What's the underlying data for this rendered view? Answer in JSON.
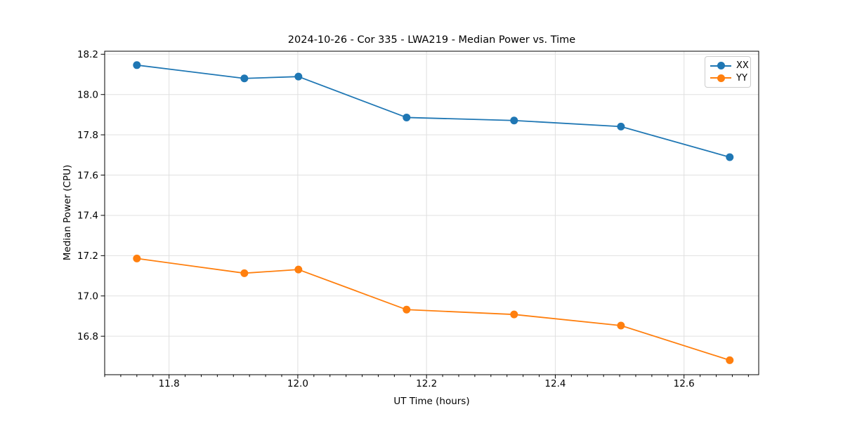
{
  "figure": {
    "title": "2024-10-26 - Cor 335 - LWA219 - Median Power vs. Time",
    "xlabel": "UT Time (hours)",
    "ylabel": "Median Power (CPU)"
  },
  "legend": {
    "items": [
      {
        "label": "XX",
        "color": "#1f77b4"
      },
      {
        "label": "YY",
        "color": "#ff7f0e"
      }
    ]
  },
  "colors": {
    "series_xx": "#1f77b4",
    "series_yy": "#ff7f0e",
    "grid": "#e0e0e0",
    "spine": "#000000",
    "background": "#ffffff"
  },
  "chart_data": {
    "type": "line",
    "title": "2024-10-26 - Cor 335 - LWA219 - Median Power vs. Time",
    "xlabel": "UT Time (hours)",
    "ylabel": "Median Power (CPU)",
    "x": [
      11.75,
      11.917,
      12.001,
      12.169,
      12.336,
      12.502,
      12.671
    ],
    "series": [
      {
        "name": "XX",
        "color": "#1f77b4",
        "values": [
          18.146,
          18.08,
          18.089,
          17.886,
          17.871,
          17.841,
          17.689
        ]
      },
      {
        "name": "YY",
        "color": "#ff7f0e",
        "values": [
          17.186,
          17.113,
          17.131,
          16.932,
          16.908,
          16.853,
          16.681
        ]
      }
    ],
    "xlim": [
      11.7,
      12.716
    ],
    "ylim": [
      16.609,
      18.215
    ],
    "x_ticks": [
      11.8,
      12.0,
      12.2,
      12.4,
      12.6
    ],
    "x_tick_labels": [
      "11.8",
      "12.0",
      "12.2",
      "12.4",
      "12.6"
    ],
    "y_ticks": [
      16.8,
      17.0,
      17.2,
      17.4,
      17.6,
      17.8,
      18.0,
      18.2
    ],
    "y_tick_labels": [
      "16.8",
      "17.0",
      "17.2",
      "17.4",
      "17.6",
      "17.8",
      "18.0",
      "18.2"
    ],
    "x_minor_step": 0.025,
    "grid": true,
    "legend_position": "upper right",
    "marker": "o"
  }
}
